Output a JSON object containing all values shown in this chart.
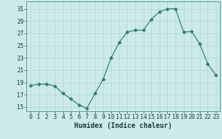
{
  "x": [
    0,
    1,
    2,
    3,
    4,
    5,
    6,
    7,
    8,
    9,
    10,
    11,
    12,
    13,
    14,
    15,
    16,
    17,
    18,
    19,
    20,
    21,
    22,
    23
  ],
  "y": [
    18.5,
    18.7,
    18.7,
    18.4,
    17.2,
    16.3,
    15.3,
    14.8,
    17.2,
    19.5,
    23.0,
    25.5,
    27.2,
    27.5,
    27.5,
    29.3,
    30.5,
    31.0,
    31.0,
    27.2,
    27.3,
    25.3,
    22.0,
    20.2
  ],
  "line_color": "#2e7d6e",
  "marker": "D",
  "marker_size": 2.5,
  "bg_color": "#cceaea",
  "grid_color": "#b0d4d4",
  "xlabel": "Humidex (Indice chaleur)",
  "ylabel_ticks": [
    15,
    17,
    19,
    21,
    23,
    25,
    27,
    29,
    31
  ],
  "ylim": [
    14.3,
    32.2
  ],
  "xlim": [
    -0.5,
    23.5
  ],
  "tick_fontsize": 6.0,
  "xlabel_fontsize": 7.0
}
